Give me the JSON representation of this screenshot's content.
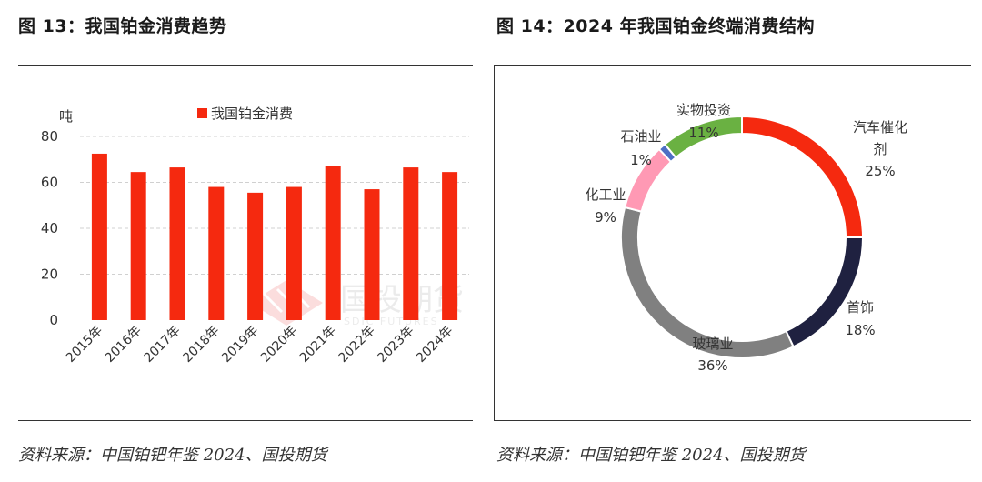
{
  "left": {
    "title": "图 13：我国铂金消费趋势",
    "source": "资料来源：中国铂钯年鉴 2024、国投期货"
  },
  "right": {
    "title": "图 14：2024 年我国铂金终端消费结构",
    "source": "资料来源：中国铂钯年鉴 2024、国投期货"
  },
  "watermark": {
    "text": "国投期货",
    "subtext": "SDIC FUTURES"
  },
  "chart_data": [
    {
      "type": "bar",
      "ylabel": "吨",
      "legend": "我国铂金消费",
      "legend_position": "top",
      "grid": true,
      "ylim": [
        0,
        80
      ],
      "yticks": [
        0,
        20,
        40,
        60,
        80
      ],
      "categories": [
        "2015年",
        "2016年",
        "2017年",
        "2018年",
        "2019年",
        "2020年",
        "2021年",
        "2022年",
        "2023年",
        "2024年"
      ],
      "series": [
        {
          "name": "我国铂金消费",
          "values": [
            72.5,
            64.5,
            66.5,
            58,
            55.5,
            58,
            67,
            57,
            66.5,
            64.5
          ]
        }
      ],
      "color": "#f5290f"
    },
    {
      "type": "pie",
      "donut": true,
      "slices": [
        {
          "label": "汽车催化剂",
          "value": 25,
          "pct": "25%",
          "color": "#f5290f"
        },
        {
          "label": "首饰",
          "value": 18,
          "pct": "18%",
          "color": "#1f2140"
        },
        {
          "label": "玻璃业",
          "value": 36,
          "pct": "36%",
          "color": "#808080"
        },
        {
          "label": "化工业",
          "value": 9,
          "pct": "9%",
          "color": "#ff99b4"
        },
        {
          "label": "石油业",
          "value": 1,
          "pct": "1%",
          "color": "#4d6fc4"
        },
        {
          "label": "实物投资",
          "value": 11,
          "pct": "11%",
          "color": "#6ab142"
        }
      ]
    }
  ]
}
